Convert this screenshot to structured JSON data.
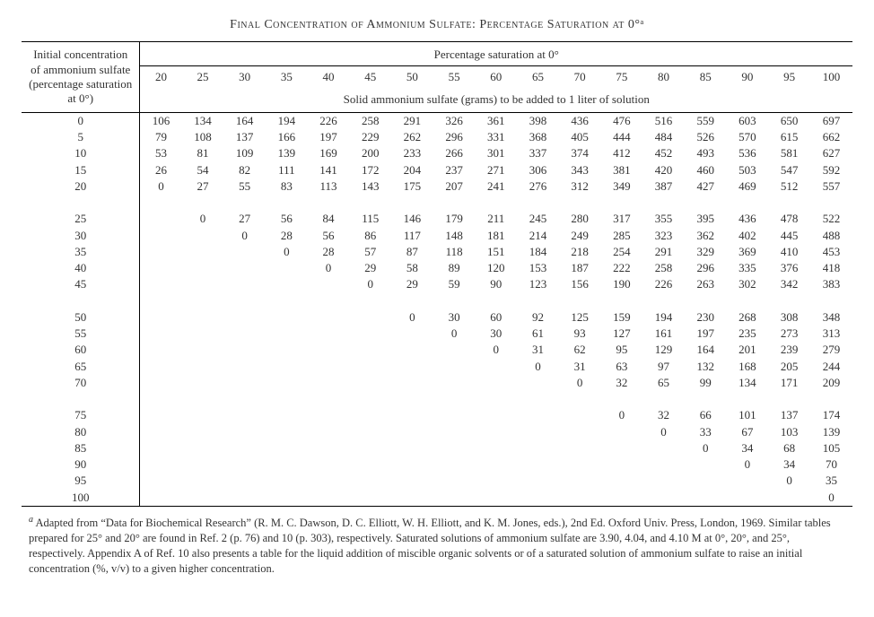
{
  "title": "Final Concentration of Ammonium Sulfate: Percentage Saturation at 0°ᵃ",
  "rowhead_label_lines": [
    "Initial concentration",
    "of ammonium sulfate",
    "(percentage saturation",
    "at 0°)"
  ],
  "spanner_top": "Percentage saturation at 0°",
  "spanner_sub": "Solid ammonium sulfate (grams) to be added to 1 liter of solution",
  "col_labels": [
    "20",
    "25",
    "30",
    "35",
    "40",
    "45",
    "50",
    "55",
    "60",
    "65",
    "70",
    "75",
    "80",
    "85",
    "90",
    "95",
    "100"
  ],
  "groups": [
    {
      "rows": [
        {
          "h": "0",
          "v": [
            "106",
            "134",
            "164",
            "194",
            "226",
            "258",
            "291",
            "326",
            "361",
            "398",
            "436",
            "476",
            "516",
            "559",
            "603",
            "650",
            "697"
          ]
        },
        {
          "h": "5",
          "v": [
            "79",
            "108",
            "137",
            "166",
            "197",
            "229",
            "262",
            "296",
            "331",
            "368",
            "405",
            "444",
            "484",
            "526",
            "570",
            "615",
            "662"
          ]
        },
        {
          "h": "10",
          "v": [
            "53",
            "81",
            "109",
            "139",
            "169",
            "200",
            "233",
            "266",
            "301",
            "337",
            "374",
            "412",
            "452",
            "493",
            "536",
            "581",
            "627"
          ]
        },
        {
          "h": "15",
          "v": [
            "26",
            "54",
            "82",
            "111",
            "141",
            "172",
            "204",
            "237",
            "271",
            "306",
            "343",
            "381",
            "420",
            "460",
            "503",
            "547",
            "592"
          ]
        },
        {
          "h": "20",
          "v": [
            "0",
            "27",
            "55",
            "83",
            "113",
            "143",
            "175",
            "207",
            "241",
            "276",
            "312",
            "349",
            "387",
            "427",
            "469",
            "512",
            "557"
          ]
        }
      ]
    },
    {
      "rows": [
        {
          "h": "25",
          "v": [
            "",
            "0",
            "27",
            "56",
            "84",
            "115",
            "146",
            "179",
            "211",
            "245",
            "280",
            "317",
            "355",
            "395",
            "436",
            "478",
            "522"
          ]
        },
        {
          "h": "30",
          "v": [
            "",
            "",
            "0",
            "28",
            "56",
            "86",
            "117",
            "148",
            "181",
            "214",
            "249",
            "285",
            "323",
            "362",
            "402",
            "445",
            "488"
          ]
        },
        {
          "h": "35",
          "v": [
            "",
            "",
            "",
            "0",
            "28",
            "57",
            "87",
            "118",
            "151",
            "184",
            "218",
            "254",
            "291",
            "329",
            "369",
            "410",
            "453"
          ]
        },
        {
          "h": "40",
          "v": [
            "",
            "",
            "",
            "",
            "0",
            "29",
            "58",
            "89",
            "120",
            "153",
            "187",
            "222",
            "258",
            "296",
            "335",
            "376",
            "418"
          ]
        },
        {
          "h": "45",
          "v": [
            "",
            "",
            "",
            "",
            "",
            "0",
            "29",
            "59",
            "90",
            "123",
            "156",
            "190",
            "226",
            "263",
            "302",
            "342",
            "383"
          ]
        }
      ]
    },
    {
      "rows": [
        {
          "h": "50",
          "v": [
            "",
            "",
            "",
            "",
            "",
            "",
            "0",
            "30",
            "60",
            "92",
            "125",
            "159",
            "194",
            "230",
            "268",
            "308",
            "348"
          ]
        },
        {
          "h": "55",
          "v": [
            "",
            "",
            "",
            "",
            "",
            "",
            "",
            "0",
            "30",
            "61",
            "93",
            "127",
            "161",
            "197",
            "235",
            "273",
            "313"
          ]
        },
        {
          "h": "60",
          "v": [
            "",
            "",
            "",
            "",
            "",
            "",
            "",
            "",
            "0",
            "31",
            "62",
            "95",
            "129",
            "164",
            "201",
            "239",
            "279"
          ]
        },
        {
          "h": "65",
          "v": [
            "",
            "",
            "",
            "",
            "",
            "",
            "",
            "",
            "",
            "0",
            "31",
            "63",
            "97",
            "132",
            "168",
            "205",
            "244"
          ]
        },
        {
          "h": "70",
          "v": [
            "",
            "",
            "",
            "",
            "",
            "",
            "",
            "",
            "",
            "",
            "0",
            "32",
            "65",
            "99",
            "134",
            "171",
            "209"
          ]
        }
      ]
    },
    {
      "rows": [
        {
          "h": "75",
          "v": [
            "",
            "",
            "",
            "",
            "",
            "",
            "",
            "",
            "",
            "",
            "",
            "0",
            "32",
            "66",
            "101",
            "137",
            "174"
          ]
        },
        {
          "h": "80",
          "v": [
            "",
            "",
            "",
            "",
            "",
            "",
            "",
            "",
            "",
            "",
            "",
            "",
            "0",
            "33",
            "67",
            "103",
            "139"
          ]
        },
        {
          "h": "85",
          "v": [
            "",
            "",
            "",
            "",
            "",
            "",
            "",
            "",
            "",
            "",
            "",
            "",
            "",
            "0",
            "34",
            "68",
            "105"
          ]
        },
        {
          "h": "90",
          "v": [
            "",
            "",
            "",
            "",
            "",
            "",
            "",
            "",
            "",
            "",
            "",
            "",
            "",
            "",
            "0",
            "34",
            "70"
          ]
        },
        {
          "h": "95",
          "v": [
            "",
            "",
            "",
            "",
            "",
            "",
            "",
            "",
            "",
            "",
            "",
            "",
            "",
            "",
            "",
            "0",
            "35"
          ]
        },
        {
          "h": "100",
          "v": [
            "",
            "",
            "",
            "",
            "",
            "",
            "",
            "",
            "",
            "",
            "",
            "",
            "",
            "",
            "",
            "",
            "0"
          ]
        }
      ]
    }
  ],
  "footnote_marker": "a",
  "footnote": "Adapted from “Data for Biochemical Research” (R. M. C. Dawson, D. C. Elliott, W. H. Elliott, and K. M. Jones, eds.), 2nd Ed. Oxford Univ. Press, London, 1969. Similar tables prepared for 25° and 20° are found in Ref. 2 (p. 76) and 10 (p. 303), respectively. Saturated solutions of ammonium sulfate are 3.90, 4.04, and 4.10 M at 0°, 20°, and 25°, respectively. Appendix A of Ref. 10 also presents a table for the liquid addition of miscible organic solvents or of a saturated solution of ammonium sulfate to raise an initial concentration (%, v/v) to a given higher concentration."
}
